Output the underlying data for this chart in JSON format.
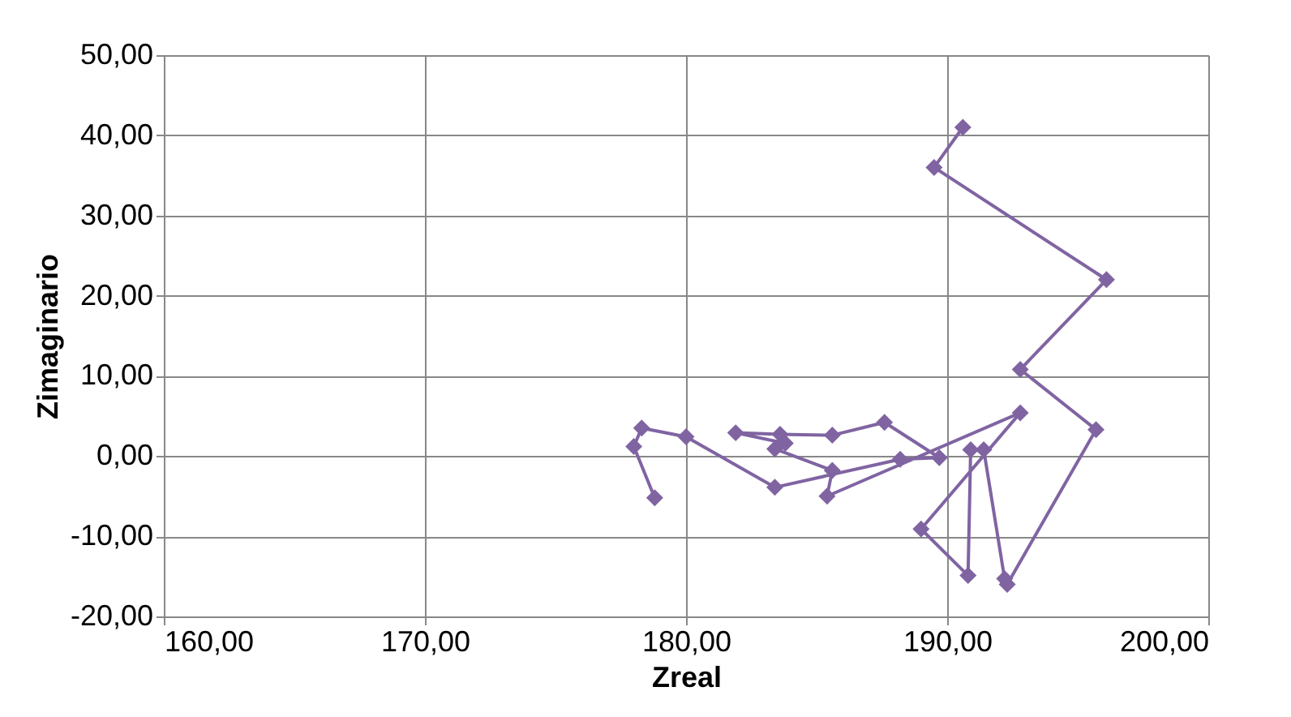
{
  "chart_data": {
    "type": "line",
    "xlabel": "Zreal",
    "ylabel": "Zimaginario",
    "marker": "diamond",
    "grid": true,
    "xlim": [
      160,
      200
    ],
    "xticks": [
      {
        "value": 160,
        "label": "160,00"
      },
      {
        "value": 170,
        "label": "170,00"
      },
      {
        "value": 180,
        "label": "180,00"
      },
      {
        "value": 190,
        "label": "190,00"
      },
      {
        "value": 200,
        "label": "200,00"
      }
    ],
    "ylim": [
      -20,
      50
    ],
    "yticks": [
      {
        "value": -20,
        "label": "-20,00"
      },
      {
        "value": -10,
        "label": "-10,00"
      },
      {
        "value": 0,
        "label": "0,00"
      },
      {
        "value": 10,
        "label": "10,00"
      },
      {
        "value": 20,
        "label": "20,00"
      },
      {
        "value": 30,
        "label": "30,00"
      },
      {
        "value": 40,
        "label": "40,00"
      },
      {
        "value": 50,
        "label": "50,00"
      }
    ],
    "series": [
      {
        "color": "#8064a2",
        "x": [
          190.6,
          189.5,
          196.1,
          192.8,
          195.7,
          192.3,
          192.2,
          191.4,
          190.9,
          190.8,
          189.0,
          192.8,
          185.4,
          185.6,
          183.4,
          183.8,
          181.9,
          183.6,
          185.6,
          187.6,
          189.7,
          188.2,
          183.4,
          180.0,
          178.3,
          178.0,
          178.8
        ],
        "values": [
          41.0,
          36.0,
          22.0,
          10.8,
          3.3,
          -16.0,
          -15.3,
          0.8,
          0.8,
          -14.9,
          -9.1,
          5.4,
          -5.0,
          -1.8,
          0.9,
          1.6,
          2.9,
          2.7,
          2.6,
          4.2,
          -0.2,
          -0.4,
          -3.9,
          2.4,
          3.5,
          1.2,
          -5.2
        ]
      }
    ]
  }
}
